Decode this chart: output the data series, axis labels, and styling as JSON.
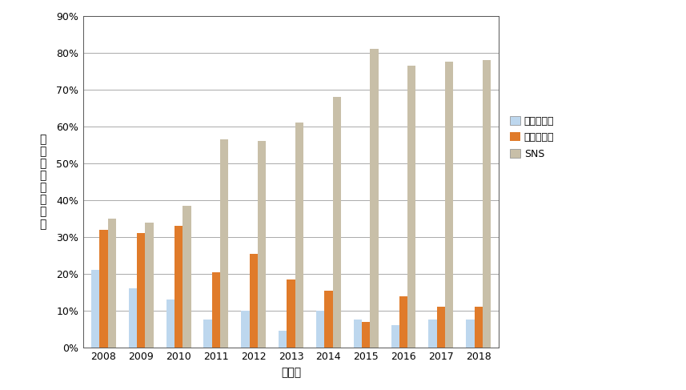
{
  "years": [
    2008,
    2009,
    2010,
    2011,
    2012,
    2013,
    2014,
    2015,
    2016,
    2017,
    2018
  ],
  "web_search": [
    21,
    16,
    13,
    7.5,
    10,
    4.5,
    10,
    7.5,
    6,
    7.5,
    7.5
  ],
  "ecommerce": [
    32,
    31,
    33,
    20.5,
    25.5,
    18.5,
    15.5,
    7,
    14,
    11,
    11
  ],
  "sns": [
    35,
    34,
    38.5,
    56.5,
    56,
    61,
    68,
    81,
    76.5,
    77.5,
    78
  ],
  "bar_color_web": "#BDD7EE",
  "bar_color_ecom": "#E07B2A",
  "bar_color_sns": "#C8BFA8",
  "legend_labels": [
    "ウェブ検索",
    "電子商取引",
    "SNS"
  ],
  "xlabel": "発行年",
  "ylabel_chars": [
    "論",
    "文",
    "発",
    "表",
    "件",
    "数",
    "比",
    "率"
  ],
  "ylim": [
    0,
    90
  ],
  "yticks": [
    0,
    10,
    20,
    30,
    40,
    50,
    60,
    70,
    80,
    90
  ],
  "ytick_labels": [
    "0%",
    "10%",
    "20%",
    "30%",
    "40%",
    "50%",
    "60%",
    "70%",
    "80%",
    "90%"
  ],
  "background_color": "#FFFFFF",
  "grid_color": "#888888",
  "bar_width": 0.22
}
